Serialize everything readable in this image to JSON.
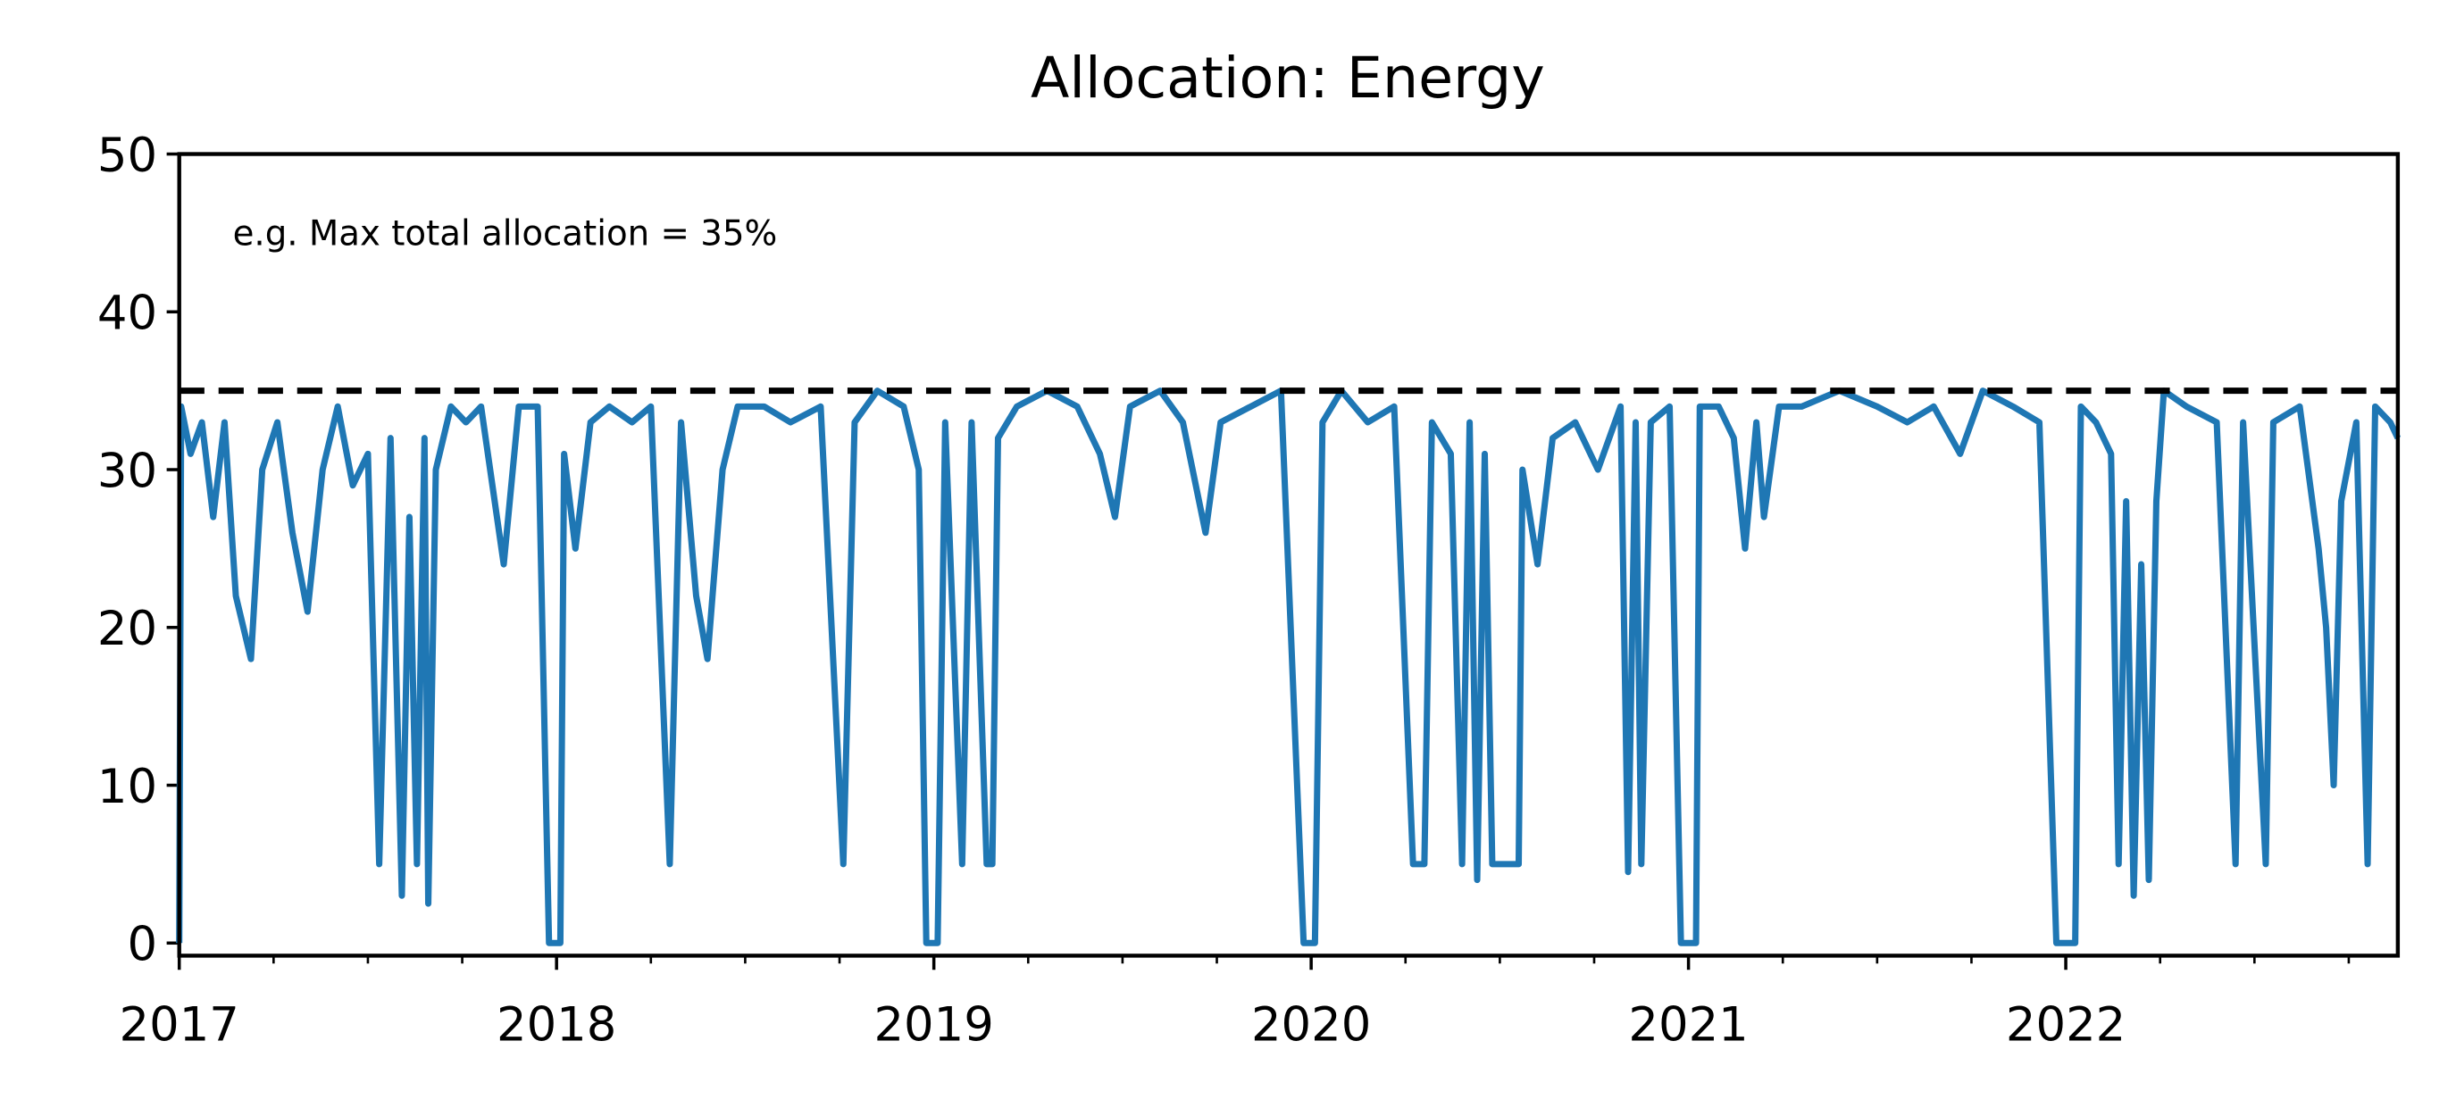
{
  "chart_data": {
    "type": "line",
    "title": "Allocation: Energy",
    "annotation": "e.g. Max total allocation = 35%",
    "hline": {
      "value": 35,
      "color": "#000000",
      "dashed": true
    },
    "x": [
      2017.0,
      2017.005,
      2017.03,
      2017.06,
      2017.09,
      2017.12,
      2017.15,
      2017.19,
      2017.22,
      2017.26,
      2017.3,
      2017.34,
      2017.38,
      2017.42,
      2017.46,
      2017.5,
      2017.53,
      2017.56,
      2017.59,
      2017.61,
      2017.63,
      2017.65,
      2017.66,
      2017.68,
      2017.72,
      2017.76,
      2017.8,
      2017.86,
      2017.9,
      2017.95,
      2017.98,
      2018.01,
      2018.02,
      2018.05,
      2018.09,
      2018.14,
      2018.2,
      2018.25,
      2018.3,
      2018.33,
      2018.37,
      2018.4,
      2018.44,
      2018.48,
      2018.55,
      2018.62,
      2018.7,
      2018.76,
      2018.79,
      2018.85,
      2018.92,
      2018.96,
      2018.98,
      2019.01,
      2019.03,
      2019.075,
      2019.1,
      2019.14,
      2019.155,
      2019.17,
      2019.22,
      2019.3,
      2019.38,
      2019.44,
      2019.48,
      2019.52,
      2019.6,
      2019.66,
      2019.72,
      2019.76,
      2019.84,
      2019.92,
      2019.98,
      2020.01,
      2020.03,
      2020.08,
      2020.15,
      2020.22,
      2020.27,
      2020.3,
      2020.32,
      2020.37,
      2020.4,
      2020.42,
      2020.44,
      2020.46,
      2020.48,
      2020.55,
      2020.56,
      2020.6,
      2020.64,
      2020.7,
      2020.76,
      2020.82,
      2020.84,
      2020.86,
      2020.875,
      2020.9,
      2020.95,
      2020.98,
      2021.02,
      2021.03,
      2021.08,
      2021.12,
      2021.15,
      2021.18,
      2021.2,
      2021.24,
      2021.3,
      2021.4,
      2021.5,
      2021.58,
      2021.65,
      2021.72,
      2021.78,
      2021.86,
      2021.93,
      2021.975,
      2022.025,
      2022.04,
      2022.08,
      2022.12,
      2022.14,
      2022.16,
      2022.18,
      2022.2,
      2022.22,
      2022.24,
      2022.26,
      2022.32,
      2022.4,
      2022.45,
      2022.47,
      2022.53,
      2022.55,
      2022.62,
      2022.67,
      2022.69,
      2022.71,
      2022.73,
      2022.77,
      2022.8,
      2022.82,
      2022.86,
      2022.88
    ],
    "series": [
      {
        "name": "Energy",
        "color": "#1f77b4",
        "values": [
          0,
          34,
          31,
          33,
          27,
          33,
          22,
          18,
          30,
          33,
          26,
          21,
          30,
          34,
          29,
          31,
          5,
          32,
          3,
          27,
          5,
          32,
          2.5,
          30,
          34,
          33,
          34,
          24,
          34,
          34,
          0,
          0,
          31,
          25,
          33,
          34,
          33,
          34,
          5,
          33,
          22,
          18,
          30,
          34,
          34,
          33,
          34,
          5,
          33,
          35,
          34,
          30,
          0,
          0,
          33,
          5,
          33,
          5,
          5,
          32,
          34,
          35,
          34,
          31,
          27,
          34,
          35,
          33,
          26,
          33,
          34,
          35,
          0,
          0,
          33,
          35,
          33,
          34,
          5,
          5,
          33,
          31,
          5,
          33,
          4,
          31,
          5,
          5,
          30,
          24,
          32,
          33,
          30,
          34,
          4.5,
          33,
          5,
          33,
          34,
          0,
          0,
          34,
          34,
          32,
          25,
          33,
          27,
          34,
          34,
          35,
          34,
          33,
          34,
          31,
          35,
          34,
          33,
          0,
          0,
          34,
          33,
          31,
          5,
          28,
          3,
          24,
          4,
          28,
          35,
          34,
          33,
          5,
          33,
          5,
          33,
          34,
          25,
          20,
          10,
          28,
          33,
          5,
          34,
          33,
          32
        ]
      }
    ],
    "xlim": [
      2017,
      2022.88
    ],
    "xticks": [
      2017,
      2018,
      2019,
      2020,
      2021,
      2022
    ],
    "xminorticks": [
      2017.25,
      2017.5,
      2017.75,
      2018.25,
      2018.5,
      2018.75,
      2019.25,
      2019.5,
      2019.75,
      2020.25,
      2020.5,
      2020.75,
      2021.25,
      2021.5,
      2021.75,
      2022.25,
      2022.5,
      2022.75
    ],
    "ylim": [
      -0.8,
      50
    ],
    "yticks": [
      0,
      10,
      20,
      30,
      40,
      50
    ],
    "grid": false
  }
}
